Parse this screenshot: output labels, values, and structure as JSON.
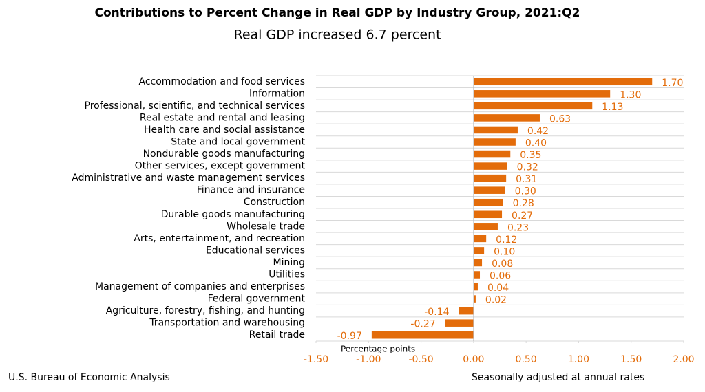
{
  "chart_data": {
    "type": "bar",
    "orientation": "horizontal",
    "title": "Contributions to Percent Change in Real GDP by Industry Group, 2021:Q2",
    "subtitle": "Real GDP increased 6.7 percent",
    "categories": [
      "Accommodation and food services",
      "Information",
      "Professional, scientific, and technical services",
      "Real estate and rental and leasing",
      "Health care and social assistance",
      "State and local government",
      "Nondurable goods manufacturing",
      "Other services, except government",
      "Administrative and waste management services",
      "Finance and insurance",
      "Construction",
      "Durable goods manufacturing",
      "Wholesale trade",
      "Arts, entertainment, and recreation",
      "Educational services",
      "Mining",
      "Utilities",
      "Management of companies and enterprises",
      "Federal government",
      "Agriculture, forestry, fishing, and hunting",
      "Transportation and warehousing",
      "Retail trade"
    ],
    "values": [
      1.7,
      1.3,
      1.13,
      0.63,
      0.42,
      0.4,
      0.35,
      0.32,
      0.31,
      0.3,
      0.28,
      0.27,
      0.23,
      0.12,
      0.1,
      0.08,
      0.06,
      0.04,
      0.02,
      -0.14,
      -0.27,
      -0.97
    ],
    "value_labels": [
      "1.70",
      "1.30",
      "1.13",
      "0.63",
      "0.42",
      "0.40",
      "0.35",
      "0.32",
      "0.31",
      "0.30",
      "0.28",
      "0.27",
      "0.23",
      "0.12",
      "0.10",
      "0.08",
      "0.06",
      "0.04",
      "0.02",
      "-0.14",
      "-0.27",
      "-0.97"
    ],
    "color": "#e36c0a",
    "xlim": [
      -1.5,
      2.0
    ],
    "xticks": [
      {
        "value": -1.5,
        "label": "-1.50"
      },
      {
        "value": -1.0,
        "label": "-1.00"
      },
      {
        "value": -0.5,
        "label": "-0.50"
      },
      {
        "value": 0,
        "label": "0.00"
      },
      {
        "value": 0.5,
        "label": "0.50"
      },
      {
        "value": 1.0,
        "label": "1.00"
      },
      {
        "value": 1.5,
        "label": "1.50"
      },
      {
        "value": 2.0,
        "label": "2.00"
      }
    ],
    "xlabel": "Percentage points",
    "source": "U.S. Bureau of Economic Analysis",
    "note": "Seasonally adjusted at annual rates"
  }
}
